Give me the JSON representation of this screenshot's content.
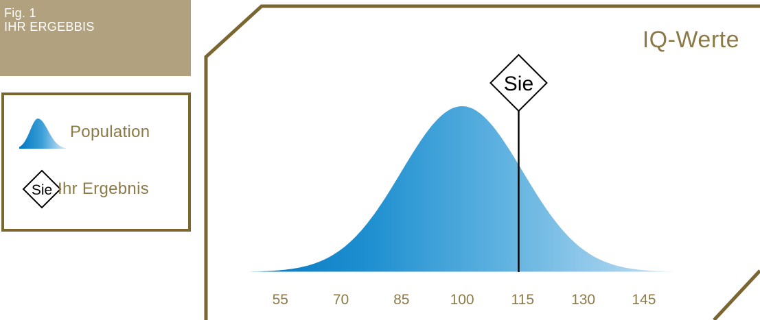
{
  "figure": {
    "label": "Fig. 1",
    "title": "IHR ERGEBBIS"
  },
  "legend": {
    "population_label": "Population",
    "result_label": "Ihr Ergebnis",
    "marker_text": "Sie"
  },
  "colors": {
    "frame": "#7a6631",
    "fig_box": "#b1a17f",
    "text_gold": "#8b7a48",
    "curve_dark": "#0077c0",
    "curve_light": "#e6f2fa",
    "tick_label": "#8b7a48"
  },
  "chart_data": {
    "type": "area",
    "title": "IQ-Werte",
    "distribution": {
      "mean": 100,
      "sd": 15
    },
    "xlim": [
      40,
      170
    ],
    "x_ticks": [
      55,
      70,
      85,
      100,
      115,
      130,
      145
    ],
    "x_tick_labels": [
      "55",
      "70",
      "85",
      "100",
      "115",
      "130",
      "145"
    ],
    "series": [
      {
        "name": "Population",
        "kind": "normal-curve"
      }
    ],
    "marker": {
      "label": "Sie",
      "x": 114,
      "legend": "Ihr Ergebnis"
    },
    "grid": false,
    "legend_position": "left-outside"
  }
}
